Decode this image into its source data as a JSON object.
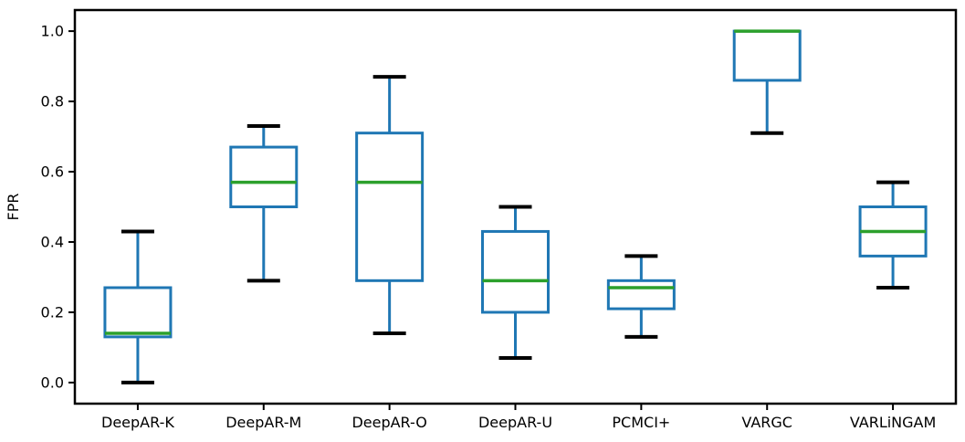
{
  "chart_data": {
    "type": "boxplot",
    "title": "",
    "xlabel": "",
    "ylabel": "FPR",
    "categories": [
      "DeepAR-K",
      "DeepAR-M",
      "DeepAR-O",
      "DeepAR-U",
      "PCMCI+",
      "VARGC",
      "VARLiNGAM"
    ],
    "boxes": [
      {
        "label": "DeepAR-K",
        "min": 0.0,
        "q1": 0.13,
        "median": 0.14,
        "q3": 0.27,
        "max": 0.43
      },
      {
        "label": "DeepAR-M",
        "min": 0.29,
        "q1": 0.5,
        "median": 0.57,
        "q3": 0.67,
        "max": 0.73
      },
      {
        "label": "DeepAR-O",
        "min": 0.14,
        "q1": 0.29,
        "median": 0.57,
        "q3": 0.71,
        "max": 0.87
      },
      {
        "label": "DeepAR-U",
        "min": 0.07,
        "q1": 0.2,
        "median": 0.29,
        "q3": 0.43,
        "max": 0.5
      },
      {
        "label": "PCMCI+",
        "min": 0.13,
        "q1": 0.21,
        "median": 0.27,
        "q3": 0.29,
        "max": 0.36
      },
      {
        "label": "VARGC",
        "min": 0.71,
        "q1": 0.86,
        "median": 1.0,
        "q3": 1.0,
        "max": 1.0
      },
      {
        "label": "VARLiNGAM",
        "min": 0.27,
        "q1": 0.36,
        "median": 0.43,
        "q3": 0.5,
        "max": 0.57
      }
    ],
    "ylim": [
      -0.06,
      1.06
    ],
    "yticks": [
      0.0,
      0.2,
      0.4,
      0.6,
      0.8,
      1.0
    ],
    "ytick_labels": [
      "0.0",
      "0.2",
      "0.4",
      "0.6",
      "0.8",
      "1.0"
    ],
    "grid": false,
    "legend": "none",
    "colors": {
      "box": "#1f77b4",
      "whisker": "#1f77b4",
      "median": "#2ca02c",
      "cap": "#000000",
      "spine": "#000000",
      "background": "#ffffff"
    }
  }
}
